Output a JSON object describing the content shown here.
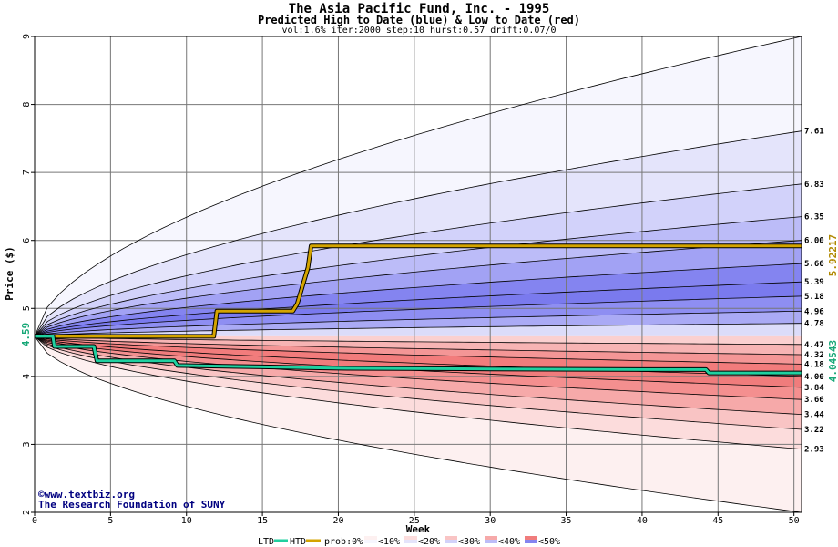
{
  "chart_data": {
    "type": "line",
    "title": "The Asia Pacific Fund, Inc. - 1995",
    "subtitle": "Predicted High to Date (blue) &  Low to Date (red)",
    "params": "vol:1.6% iter:2000 step:10 hurst:0.57 drift:0.07/0",
    "xlabel": "Week",
    "ylabel": "Price ($)",
    "xlim": [
      0,
      50.5
    ],
    "ylim": [
      2,
      9
    ],
    "x_ticks": [
      0,
      5,
      10,
      15,
      20,
      25,
      30,
      35,
      40,
      45,
      50
    ],
    "y_ticks": [
      2,
      3,
      4,
      5,
      6,
      7,
      8,
      9
    ],
    "start_price": 4.59,
    "start_label": "4.59",
    "grid": true,
    "high_quantile_ends": [
      7.61,
      6.83,
      6.35,
      6.0,
      5.66,
      5.39,
      5.18,
      4.96,
      4.78
    ],
    "high_quantile_labels": [
      "7.61",
      "6.83",
      "6.35",
      "6.00",
      "5.66",
      "5.39",
      "5.18",
      "4.96",
      "4.78"
    ],
    "high_extreme_end": 9.0,
    "low_quantile_ends": [
      4.47,
      4.32,
      4.18,
      4.0,
      3.84,
      3.66,
      3.44,
      3.22,
      2.93
    ],
    "low_quantile_labels": [
      "4.47",
      "4.32",
      "4.18",
      "4.00",
      "3.84",
      "3.66",
      "3.44",
      "3.22",
      "2.93"
    ],
    "low_extreme_end": 2.0,
    "htd_series": {
      "name": "HTD",
      "final_label": "5.92217",
      "x": [
        0,
        11.8,
        12,
        17,
        17.3,
        18,
        18.2,
        50.5
      ],
      "y": [
        4.59,
        4.59,
        4.96,
        4.96,
        5.07,
        5.6,
        5.92,
        5.92
      ]
    },
    "ltd_series": {
      "name": "LTD",
      "final_label": "4.04543",
      "x": [
        0,
        1.2,
        1.3,
        3.9,
        4.1,
        5,
        9.2,
        9.4,
        15,
        20,
        30,
        40,
        44.2,
        44.4,
        50.5
      ],
      "y": [
        4.59,
        4.59,
        4.44,
        4.44,
        4.23,
        4.23,
        4.23,
        4.16,
        4.14,
        4.12,
        4.11,
        4.1,
        4.1,
        4.05,
        4.05
      ]
    },
    "watermark": [
      "©www.textbiz.org",
      "The Research Foundation of SUNY"
    ],
    "legend": {
      "placement": "bottom",
      "items": [
        "LTD",
        "HTD",
        "prob:0%",
        "<10%",
        "<20%",
        "<30%",
        "<40%",
        "<50%"
      ],
      "prob_prefix": "prob:0%",
      "buckets": [
        "<10%",
        "<20%",
        "<30%",
        "<40%",
        "<50%"
      ]
    },
    "colors": {
      "high_bands": [
        "#f6f6fe",
        "#e4e4fb",
        "#d2d2fa",
        "#bcbcf8",
        "#a2a2f4",
        "#8484f0",
        "#7a7aee",
        "#8e8ef2",
        "#aaaaf5",
        "#dcdcfa"
      ],
      "low_bands": [
        "#fdf0f0",
        "#fcdcdc",
        "#f9c4c4",
        "#f6a9a9",
        "#f48f8f",
        "#f07c7c",
        "#f27c7c",
        "#f49696",
        "#f7b4b4",
        "#fbd0d0"
      ],
      "htd_line": "#d4a400",
      "ltd_line": "#20d0a0",
      "htd_label": "#b08800",
      "ltd_label": "#18a878",
      "grid": "#777777"
    }
  }
}
